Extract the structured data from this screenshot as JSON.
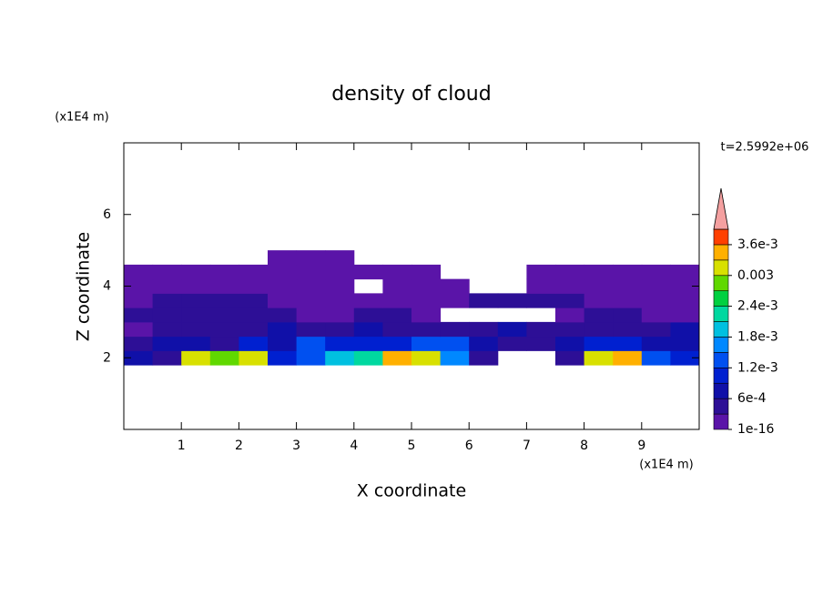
{
  "chart_data": {
    "type": "contour",
    "title": "density of cloud",
    "x_label": "X coordinate",
    "y_label": "Z coordinate",
    "x_unit": "(x1E4 m)",
    "y_unit": "(x1E4 m)",
    "annotation": "t=2.5992e+06",
    "xlim": [
      0,
      10
    ],
    "ylim": [
      0,
      8
    ],
    "xticks": [
      1,
      2,
      3,
      4,
      5,
      6,
      7,
      8,
      9
    ],
    "yticks": [
      2,
      4,
      6
    ],
    "x": [
      0.25,
      0.75,
      1.25,
      1.75,
      2.25,
      2.75,
      3.25,
      3.75,
      4.25,
      4.75,
      5.25,
      5.75,
      6.25,
      6.75,
      7.25,
      7.75,
      8.25,
      8.75,
      9.25,
      9.75
    ],
    "y": [
      2.0,
      2.4,
      2.8,
      3.2,
      3.6,
      4.0,
      4.4,
      4.8
    ],
    "z": [
      [
        0.0006,
        0.0003,
        0.003,
        0.0027,
        0.003,
        0.0009,
        0.0012,
        0.0018,
        0.0021,
        0.0033,
        0.003,
        0.0015,
        0.0003,
        null,
        null,
        0.0003,
        0.003,
        0.0033,
        0.0012,
        0.0009
      ],
      [
        0.0003,
        0.0006,
        0.0006,
        0.0003,
        0.0009,
        0.0006,
        0.0012,
        0.0009,
        0.0009,
        0.0009,
        0.0012,
        0.0012,
        0.0006,
        0.0003,
        0.0003,
        0.0006,
        0.0009,
        0.0009,
        0.0006,
        0.0006
      ],
      [
        1e-16,
        0.0003,
        0.0003,
        0.0003,
        0.0003,
        0.0006,
        0.0003,
        0.0003,
        0.0006,
        0.0003,
        0.0003,
        0.0003,
        0.0003,
        0.0006,
        0.0003,
        0.0003,
        0.0003,
        0.0003,
        0.0003,
        0.0006
      ],
      [
        0.0003,
        0.0003,
        0.0003,
        0.0003,
        0.0003,
        0.0003,
        1e-16,
        1e-16,
        0.0003,
        0.0003,
        1e-16,
        null,
        null,
        null,
        null,
        1e-16,
        0.0003,
        0.0003,
        1e-16,
        1e-16
      ],
      [
        1e-16,
        0.0003,
        0.0003,
        0.0003,
        0.0003,
        1e-16,
        1e-16,
        1e-16,
        1e-16,
        1e-16,
        1e-16,
        1e-16,
        0.0003,
        0.0003,
        0.0003,
        0.0003,
        1e-16,
        1e-16,
        1e-16,
        1e-16
      ],
      [
        1e-16,
        1e-16,
        1e-16,
        1e-16,
        1e-16,
        1e-16,
        1e-16,
        1e-16,
        null,
        1e-16,
        1e-16,
        1e-16,
        null,
        null,
        1e-16,
        1e-16,
        1e-16,
        1e-16,
        1e-16,
        1e-16
      ],
      [
        1e-16,
        1e-16,
        1e-16,
        1e-16,
        1e-16,
        1e-16,
        1e-16,
        1e-16,
        1e-16,
        1e-16,
        1e-16,
        null,
        null,
        null,
        1e-16,
        1e-16,
        1e-16,
        1e-16,
        1e-16,
        1e-16
      ],
      [
        null,
        null,
        null,
        null,
        null,
        1e-16,
        1e-16,
        1e-16,
        null,
        null,
        null,
        null,
        null,
        null,
        null,
        null,
        null,
        null,
        null,
        null
      ]
    ],
    "levels": [
      1e-16,
      0.0003,
      0.0006,
      0.0009,
      0.0012,
      0.0015,
      0.0018,
      0.0021,
      0.0024,
      0.0027,
      0.003,
      0.0033,
      0.0036,
      0.0039
    ],
    "colors": [
      "#5a14a8",
      "#2d0f96",
      "#1010a8",
      "#0020d0",
      "#0050f0",
      "#0088ff",
      "#00c0e0",
      "#00d8a0",
      "#00d040",
      "#60d800",
      "#d8e000",
      "#ffb000",
      "#ff4000"
    ],
    "extend_color": "#f4a0a0",
    "colorbar_ticks": [
      1e-16,
      {
        "value": 0.0006,
        "label": "6e-4"
      },
      {
        "value": 0.0012,
        "label": "1.2e-3"
      },
      {
        "value": 0.0018,
        "label": "1.8e-3"
      },
      {
        "value": 0.0024,
        "label": "2.4e-3"
      },
      0.003,
      {
        "value": 0.0036,
        "label": "3.6e-3"
      }
    ]
  }
}
